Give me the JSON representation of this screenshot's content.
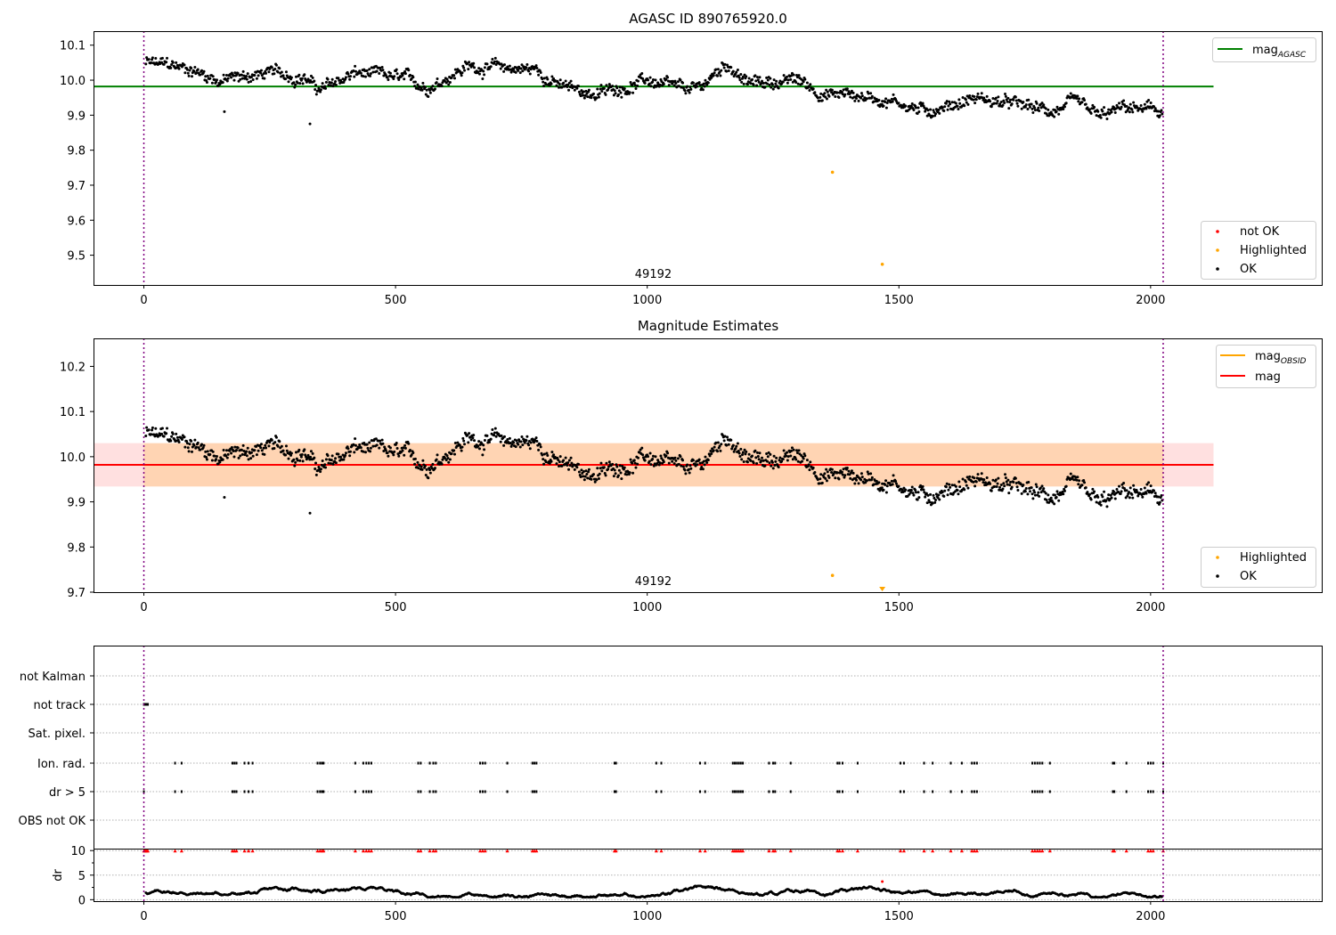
{
  "chart_data": [
    {
      "type": "scatter",
      "title": "AGASC ID 890765920.0",
      "xlabel": "",
      "ylabel": "",
      "xlim": [
        -100,
        2340
      ],
      "ylim": [
        9.415,
        10.14
      ],
      "xticks": [
        "0",
        "500",
        "1000",
        "1500",
        "2000"
      ],
      "yticks": [
        "9.5",
        "9.6",
        "9.7",
        "9.8",
        "9.9",
        "10.0",
        "10.1"
      ],
      "mag_agasc": 9.982,
      "mag_agasc_xrange": [
        -100,
        2125
      ],
      "obs_boundaries": [
        0,
        2025
      ],
      "obsid_label": {
        "text": "49192",
        "x": 1012
      },
      "series": [
        {
          "name": "not OK",
          "color": "#ff0000",
          "points": []
        },
        {
          "name": "Highlighted",
          "color": "#ffa500",
          "points": [
            [
              1368,
              9.737
            ],
            [
              1467,
              9.474
            ]
          ]
        },
        {
          "name": "OK",
          "color": "#000000",
          "trend": [
            [
              0,
              10.05
            ],
            [
              100,
              10.03
            ],
            [
              150,
              10.0
            ],
            [
              250,
              10.02
            ],
            [
              320,
              10.01
            ],
            [
              350,
              9.97
            ],
            [
              420,
              10.02
            ],
            [
              520,
              10.0
            ],
            [
              560,
              9.98
            ],
            [
              640,
              10.04
            ],
            [
              780,
              10.03
            ],
            [
              830,
              9.98
            ],
            [
              900,
              9.96
            ],
            [
              1000,
              10.0
            ],
            [
              1060,
              9.97
            ],
            [
              1100,
              9.97
            ],
            [
              1160,
              10.05
            ],
            [
              1200,
              9.99
            ],
            [
              1300,
              10.0
            ],
            [
              1350,
              9.96
            ],
            [
              1400,
              9.96
            ],
            [
              1500,
              9.94
            ],
            [
              1550,
              9.91
            ],
            [
              1650,
              9.95
            ],
            [
              1800,
              9.91
            ],
            [
              1850,
              9.93
            ],
            [
              1900,
              9.89
            ],
            [
              1950,
              9.92
            ],
            [
              2020,
              9.91
            ]
          ],
          "outliers": [
            [
              160,
              9.91
            ],
            [
              330,
              9.875
            ],
            [
              1467,
              9.94
            ]
          ]
        }
      ],
      "legends": [
        {
          "entries": [
            {
              "label": "mag",
              "sub": "AGASC",
              "color": "#008000",
              "marker": "line"
            }
          ],
          "position": "upper right"
        },
        {
          "entries": [
            {
              "label": "not OK",
              "color": "#ff0000",
              "marker": "dot"
            },
            {
              "label": "Highlighted",
              "color": "#ffa500",
              "marker": "dot"
            },
            {
              "label": "OK",
              "color": "#000000",
              "marker": "dot"
            }
          ],
          "position": "lower right"
        }
      ]
    },
    {
      "type": "scatter",
      "title": "Magnitude Estimates",
      "xlabel": "",
      "ylabel": "",
      "xlim": [
        -100,
        2340
      ],
      "ylim": [
        9.7,
        10.262
      ],
      "xticks": [
        "0",
        "500",
        "1000",
        "1500",
        "2000"
      ],
      "yticks": [
        "9.7",
        "9.8",
        "9.9",
        "10.0",
        "10.1",
        "10.2"
      ],
      "mag": 9.982,
      "mag_band": [
        9.934,
        10.03
      ],
      "mag_obsid_band": [
        9.934,
        10.03
      ],
      "band_xrange": [
        -100,
        2125
      ],
      "obs_boundaries": [
        0,
        2025
      ],
      "obsid_label": {
        "text": "49192",
        "x": 1012
      },
      "series": [
        {
          "name": "Highlighted",
          "color": "#ffa500",
          "points": [
            [
              1368,
              9.737
            ]
          ],
          "offscale_markers": [
            1467
          ]
        },
        {
          "name": "OK",
          "color": "#000000",
          "trend": [
            [
              0,
              10.05
            ],
            [
              100,
              10.03
            ],
            [
              150,
              10.0
            ],
            [
              250,
              10.02
            ],
            [
              320,
              10.01
            ],
            [
              350,
              9.97
            ],
            [
              420,
              10.02
            ],
            [
              520,
              10.0
            ],
            [
              560,
              9.98
            ],
            [
              640,
              10.04
            ],
            [
              780,
              10.03
            ],
            [
              830,
              9.98
            ],
            [
              900,
              9.96
            ],
            [
              1000,
              10.0
            ],
            [
              1060,
              9.97
            ],
            [
              1100,
              9.97
            ],
            [
              1160,
              10.05
            ],
            [
              1200,
              9.99
            ],
            [
              1300,
              10.0
            ],
            [
              1350,
              9.96
            ],
            [
              1400,
              9.96
            ],
            [
              1500,
              9.94
            ],
            [
              1550,
              9.91
            ],
            [
              1650,
              9.95
            ],
            [
              1800,
              9.91
            ],
            [
              1850,
              9.93
            ],
            [
              1900,
              9.89
            ],
            [
              1950,
              9.92
            ],
            [
              2020,
              9.91
            ]
          ],
          "outliers": [
            [
              160,
              9.91
            ],
            [
              330,
              9.875
            ],
            [
              1467,
              9.94
            ]
          ]
        }
      ],
      "legends": [
        {
          "entries": [
            {
              "label": "mag",
              "sub": "OBSID",
              "color": "#ffa500",
              "marker": "line"
            },
            {
              "label": "mag",
              "color": "#ff0000",
              "marker": "line"
            }
          ],
          "position": "upper right"
        },
        {
          "entries": [
            {
              "label": "Highlighted",
              "color": "#ffa500",
              "marker": "dot"
            },
            {
              "label": "OK",
              "color": "#000000",
              "marker": "dot"
            }
          ],
          "position": "lower right"
        }
      ]
    },
    {
      "type": "scatter",
      "title": "",
      "xlim": [
        -100,
        2340
      ],
      "obs_boundaries": [
        0,
        2025
      ],
      "flag_rows": [
        "not Kalman",
        "not track",
        "Sat. pixel.",
        "Ion. rad.",
        "dr > 5",
        "OBS not OK"
      ],
      "flags": {
        "not track": [
          0,
          2,
          4,
          6,
          8
        ],
        "Ion. rad.": [
          62,
          75,
          176,
          180,
          184,
          200,
          208,
          216,
          345,
          350,
          354,
          357,
          420,
          436,
          442,
          447,
          452,
          545,
          550,
          568,
          575,
          580,
          668,
          673,
          678,
          722,
          772,
          776,
          780,
          935,
          938,
          1018,
          1028,
          1105,
          1115,
          1170,
          1174,
          1178,
          1182,
          1186,
          1190,
          1242,
          1250,
          1254,
          1285,
          1378,
          1382,
          1388,
          1418,
          1503,
          1510,
          1550,
          1567,
          1603,
          1625,
          1645,
          1650,
          1655,
          1765,
          1770,
          1775,
          1780,
          1785,
          1800,
          1925,
          1928,
          1952,
          1995,
          2000,
          2005,
          2025
        ],
        "dr > 5": [
          0,
          62,
          75,
          176,
          180,
          184,
          200,
          208,
          216,
          345,
          350,
          354,
          357,
          420,
          436,
          442,
          447,
          452,
          545,
          550,
          568,
          575,
          580,
          668,
          673,
          678,
          722,
          772,
          776,
          780,
          935,
          938,
          1018,
          1028,
          1105,
          1115,
          1170,
          1174,
          1178,
          1182,
          1186,
          1190,
          1242,
          1250,
          1254,
          1285,
          1378,
          1382,
          1388,
          1418,
          1503,
          1510,
          1550,
          1567,
          1603,
          1625,
          1645,
          1650,
          1655,
          1765,
          1770,
          1775,
          1780,
          1785,
          1800,
          1925,
          1928,
          1952,
          1995,
          2000,
          2005,
          2025
        ]
      }
    },
    {
      "type": "scatter",
      "title": "",
      "xlabel": "",
      "ylabel": "dr",
      "xlim": [
        -100,
        2340
      ],
      "ylim": [
        -0.3,
        10.4
      ],
      "xticks": [
        "0",
        "500",
        "1000",
        "1500",
        "2000"
      ],
      "yticks": [
        "0",
        "5",
        "10"
      ],
      "dr_cap": 10,
      "obs_boundaries": [
        0,
        2025
      ],
      "clipped_x": [
        0,
        2,
        4,
        6,
        8,
        62,
        75,
        176,
        180,
        184,
        200,
        208,
        216,
        345,
        350,
        354,
        357,
        420,
        436,
        442,
        447,
        452,
        545,
        550,
        568,
        575,
        580,
        668,
        673,
        678,
        722,
        772,
        776,
        780,
        935,
        938,
        1018,
        1028,
        1105,
        1115,
        1170,
        1174,
        1178,
        1182,
        1186,
        1190,
        1242,
        1250,
        1254,
        1285,
        1378,
        1382,
        1388,
        1418,
        1503,
        1510,
        1550,
        1567,
        1603,
        1625,
        1645,
        1650,
        1655,
        1765,
        1770,
        1775,
        1780,
        1785,
        1800,
        1925,
        1928,
        1952,
        1995,
        2000,
        2005,
        2025
      ],
      "outlier_point": [
        1467,
        3.7
      ],
      "typical_range": [
        0.5,
        2.8
      ]
    }
  ]
}
